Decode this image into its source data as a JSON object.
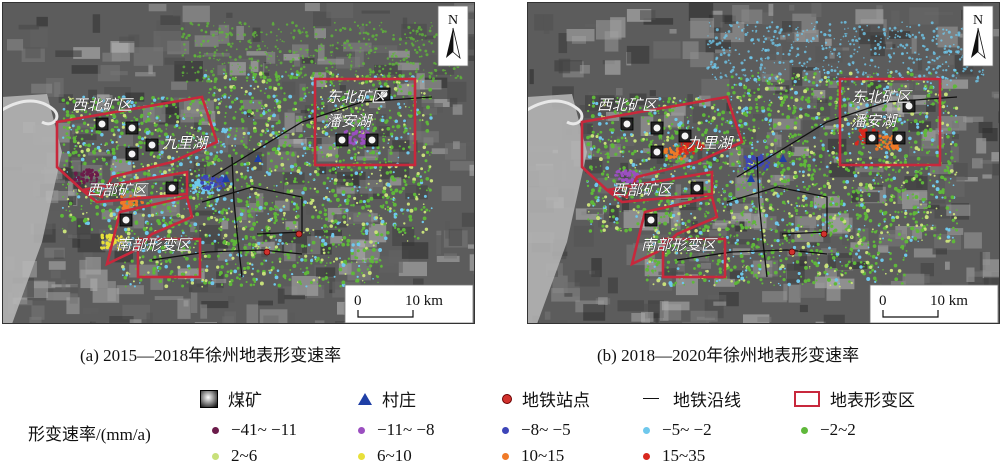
{
  "panels": [
    {
      "caption": "(a) 2015—2018年徐州地表形变速率",
      "labels": {
        "nw": "西北矿区",
        "ne": "东北矿区",
        "lake_jiuli": "九里湖",
        "lake_panan": "潘安湖",
        "west": "西部矿区",
        "south": "南部形变区"
      },
      "north": "N",
      "scale": {
        "zero": "0",
        "ten": "10 km"
      }
    },
    {
      "caption": "(b) 2018—2020年徐州地表形变速率",
      "labels": {
        "nw": "西北矿区",
        "ne": "东北矿区",
        "lake_jiuli": "九里湖",
        "lake_panan": "潘安湖",
        "west": "西部矿区",
        "south": "南部形变区"
      },
      "north": "N",
      "scale": {
        "zero": "0",
        "ten": "10 km"
      }
    }
  ],
  "legend": {
    "symbols": [
      {
        "label": "煤矿",
        "icon": "coal-mine-square-icon"
      },
      {
        "label": "村庄",
        "icon": "village-triangle-icon",
        "color": "#1f3fa6"
      },
      {
        "label": "地铁站点",
        "icon": "metro-station-dot-icon",
        "color": "#d2322d"
      },
      {
        "label": "地铁沿线",
        "icon": "metro-line-icon",
        "color": "#111111"
      },
      {
        "label": "地表形变区",
        "icon": "deformation-zone-rect-icon",
        "color": "#c8283c"
      }
    ],
    "rate_title": "形变速率/(mm/a)",
    "rates": [
      {
        "label": "−41~ −11",
        "color": "#6b1b4a"
      },
      {
        "label": "−11~ −8",
        "color": "#9b4fc0"
      },
      {
        "label": "−8~ −5",
        "color": "#3d45b8"
      },
      {
        "label": "−5~ −2",
        "color": "#6fc8ec"
      },
      {
        "label": "−2~2",
        "color": "#5fb83a"
      },
      {
        "label": "2~6",
        "color": "#c8e07a"
      },
      {
        "label": "6~10",
        "color": "#e8e03a"
      },
      {
        "label": "10~15",
        "color": "#f07a28"
      },
      {
        "label": "15~35",
        "color": "#d8281e"
      }
    ]
  }
}
